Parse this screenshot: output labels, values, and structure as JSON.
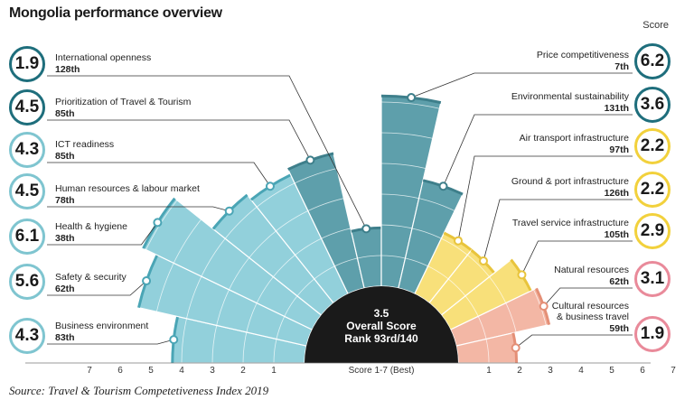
{
  "header": {
    "title": "Mongolia performance overview",
    "score_label": "Score"
  },
  "footer": {
    "source": "Source: Travel & Tourism Competetiveness Index 2019"
  },
  "center": {
    "score": "3.5",
    "label": "Overall Score",
    "rank": "Rank 93rd/140"
  },
  "colors": {
    "light_teal": "#92d0db",
    "dark_teal": "#5e9fab",
    "yellow": "#f8e07a",
    "salmon": "#f3b7a5",
    "center": "#1a1a1a",
    "badge_dark": "#1e6e7c",
    "badge_light": "#7fc5d0",
    "badge_yellow": "#f2d13c",
    "badge_pink": "#e98a9a"
  },
  "chart_data": {
    "type": "polar-bar",
    "axis_label": "Score 1-7 (Best)",
    "scale": [
      1,
      7
    ],
    "left_ticks": [
      "7",
      "6",
      "5",
      "4",
      "3",
      "2",
      "1"
    ],
    "right_ticks": [
      "1",
      "2",
      "3",
      "4",
      "5",
      "6",
      "7"
    ],
    "overall": {
      "score": 3.5,
      "rank": "93rd/140"
    },
    "indicators": [
      {
        "name": "Business environment",
        "score": 4.3,
        "score_label": "4.3",
        "rank": "83th",
        "side": "left",
        "color": "light"
      },
      {
        "name": "Safety & security",
        "score": 5.6,
        "score_label": "5.6",
        "rank": "62th",
        "side": "left",
        "color": "light"
      },
      {
        "name": "Health & hygiene",
        "score": 6.1,
        "score_label": "6.1",
        "rank": "38th",
        "side": "left",
        "color": "light"
      },
      {
        "name": "Human resources & labour market",
        "score": 4.5,
        "score_label": "4.5",
        "rank": "78th",
        "side": "left",
        "color": "light"
      },
      {
        "name": "ICT readiness",
        "score": 4.3,
        "score_label": "4.3",
        "rank": "85th",
        "side": "left",
        "color": "light"
      },
      {
        "name": "Prioritization of Travel & Tourism",
        "score": 4.5,
        "score_label": "4.5",
        "rank": "85th",
        "side": "left",
        "color": "dark"
      },
      {
        "name": "International openness",
        "score": 1.9,
        "score_label": "1.9",
        "rank": "128th",
        "side": "left",
        "color": "dark"
      },
      {
        "name": "Price competitiveness",
        "score": 6.2,
        "score_label": "6.2",
        "rank": "7th",
        "side": "right",
        "color": "dark"
      },
      {
        "name": "Environmental sustainability",
        "score": 3.6,
        "score_label": "3.6",
        "rank": "131th",
        "side": "right",
        "color": "dark"
      },
      {
        "name": "Air transport infrastructure",
        "score": 2.2,
        "score_label": "2.2",
        "rank": "97th",
        "side": "right",
        "color": "yellow"
      },
      {
        "name": "Ground & port infrastructure",
        "score": 2.2,
        "score_label": "2.2",
        "rank": "126th",
        "side": "right",
        "color": "yellow"
      },
      {
        "name": "Travel service infrastructure",
        "score": 2.9,
        "score_label": "2.9",
        "rank": "105th",
        "side": "right",
        "color": "yellow"
      },
      {
        "name": "Natural resources",
        "score": 3.1,
        "score_label": "3.1",
        "rank": "62th",
        "side": "right",
        "color": "salmon"
      },
      {
        "name": "Cultural resources\n& business travel",
        "score": 1.9,
        "score_label": "1.9",
        "rank": "59th",
        "side": "right",
        "color": "salmon"
      }
    ]
  }
}
